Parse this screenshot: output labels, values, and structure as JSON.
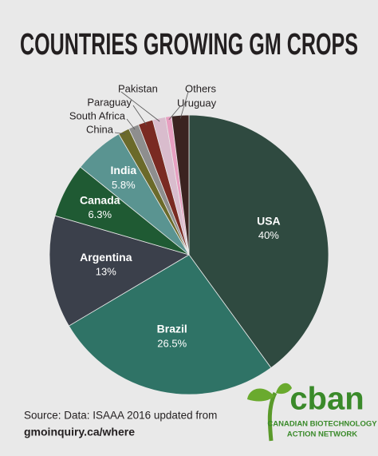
{
  "chart_data": {
    "type": "pie",
    "title": "COUNTRIES GROWING GM CROPS",
    "categories": [
      "USA",
      "Brazil",
      "Argentina",
      "Canada",
      "India",
      "China",
      "South Africa",
      "Paraguay",
      "Pakistan",
      "Uruguay",
      "Others"
    ],
    "values": [
      40,
      26.5,
      13,
      6.3,
      5.8,
      1.3,
      1.2,
      1.7,
      1.5,
      0.7,
      2.0
    ],
    "value_labels": [
      "40%",
      "26.5%",
      "13%",
      "6.3%",
      "5.8%",
      null,
      null,
      null,
      null,
      null,
      null
    ],
    "colors": [
      "#2f4a40",
      "#2f7366",
      "#3b404b",
      "#1f5a33",
      "#5a9491",
      "#6b6a2a",
      "#8e8e8e",
      "#7a2a22",
      "#d9bccd",
      "#e79fc0",
      "#3b2320"
    ],
    "source": "Source: Data: ISAAA 2016 updated from",
    "source_url": "gmoinquiry.ca/where",
    "logo": {
      "name": "cban",
      "line1": "CANADIAN BIOTECHNOLOGY",
      "line2": "ACTION NETWORK"
    }
  }
}
